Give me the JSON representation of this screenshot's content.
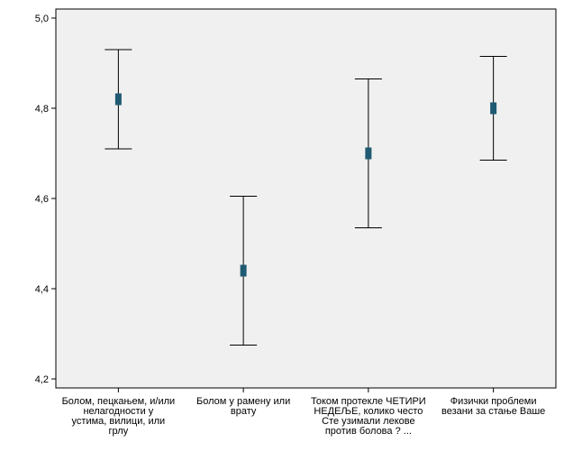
{
  "chart_data": {
    "type": "errorbar",
    "categories": [
      [
        "Болом, пецкањем, и/или",
        "нелагодности у",
        "устима, вилици, или",
        "грлу"
      ],
      [
        "Болом у рамену или",
        "врату"
      ],
      [
        "Током протекле ЧЕТИРИ",
        "НЕДЕЉЕ, колико често",
        "Сте узимали лекове",
        "против болова ? ..."
      ],
      [
        "Физички проблеми",
        "везани за стање Ваше"
      ]
    ],
    "means": [
      4.82,
      4.44,
      4.7,
      4.8
    ],
    "lower": [
      4.71,
      4.275,
      4.535,
      4.685
    ],
    "upper": [
      4.93,
      4.605,
      4.865,
      4.915
    ],
    "ylim": [
      4.18,
      5.02
    ],
    "yticks": [
      "4,2",
      "4,4",
      "4,6",
      "4,8",
      "5,0"
    ],
    "ytick_values": [
      4.2,
      4.4,
      4.6,
      4.8,
      5.0
    ],
    "title": "",
    "xlabel": "",
    "ylabel": "",
    "grid": false,
    "colors": {
      "plot_background": "#f0f0f0",
      "marker": "#1f5a72",
      "whisker": "#000000"
    }
  }
}
